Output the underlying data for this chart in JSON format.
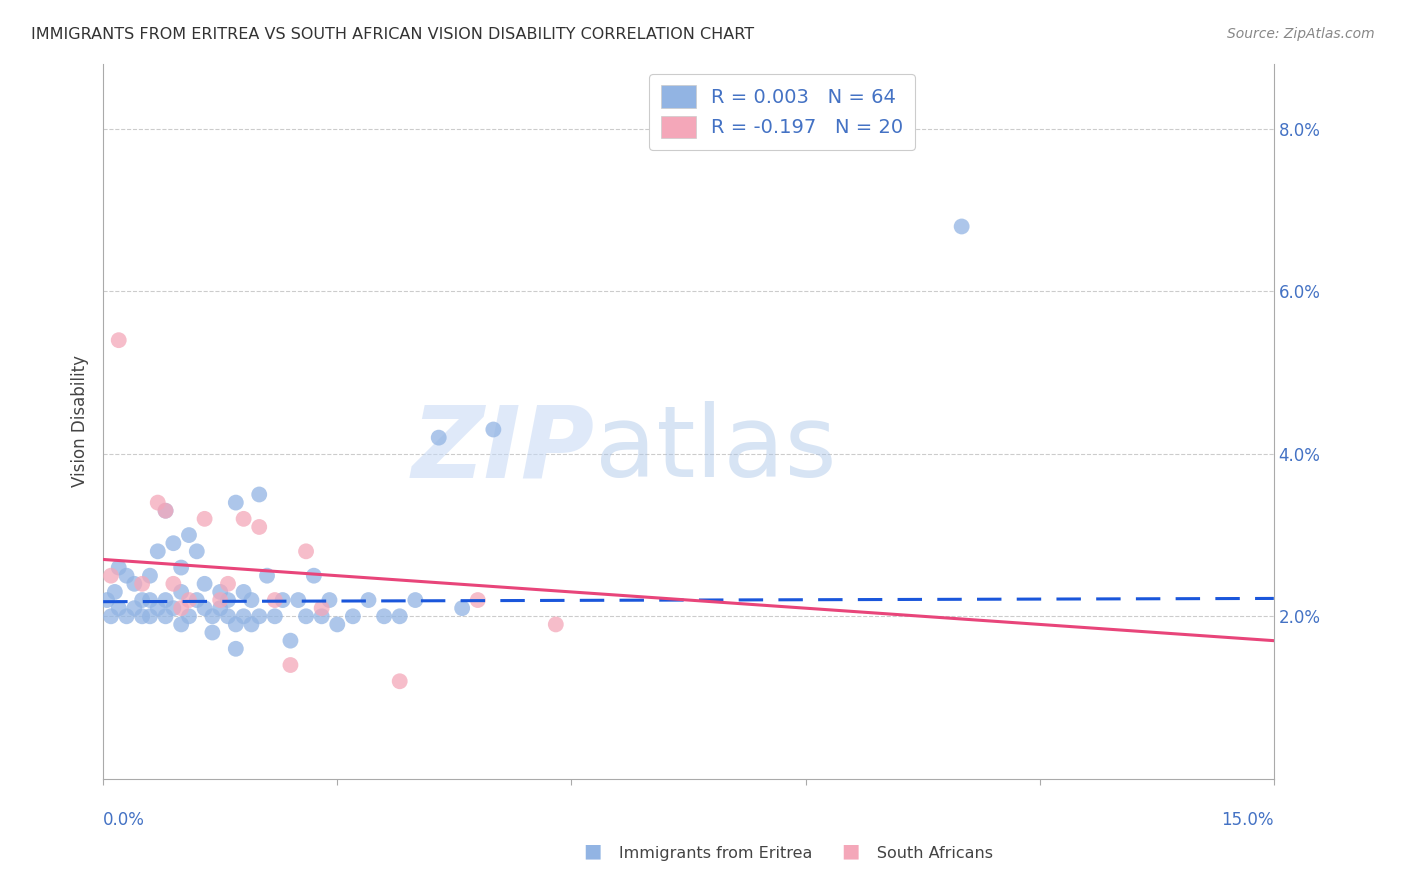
{
  "title": "IMMIGRANTS FROM ERITREA VS SOUTH AFRICAN VISION DISABILITY CORRELATION CHART",
  "source": "Source: ZipAtlas.com",
  "ylabel": "Vision Disability",
  "ylabel_right_ticks": [
    "8.0%",
    "6.0%",
    "4.0%",
    "2.0%"
  ],
  "ylabel_right_vals": [
    0.08,
    0.06,
    0.04,
    0.02
  ],
  "xlim": [
    0.0,
    0.15
  ],
  "ylim": [
    0.0,
    0.088
  ],
  "legend_r1": "R = 0.003",
  "legend_n1": "N = 64",
  "legend_r2": "R = -0.197",
  "legend_n2": "N = 20",
  "blue_color": "#92b4e3",
  "blue_line_color": "#1a56db",
  "pink_color": "#f4a7b9",
  "pink_line_color": "#e8457a",
  "watermark_zip": "ZIP",
  "watermark_atlas": "atlas",
  "label_color": "#4472c4",
  "grid_color": "#cccccc",
  "background_color": "#ffffff",
  "blue_scatter_x": [
    0.0005,
    0.001,
    0.0015,
    0.002,
    0.002,
    0.003,
    0.003,
    0.004,
    0.004,
    0.005,
    0.005,
    0.006,
    0.006,
    0.006,
    0.007,
    0.007,
    0.008,
    0.008,
    0.008,
    0.009,
    0.009,
    0.01,
    0.01,
    0.01,
    0.011,
    0.011,
    0.012,
    0.012,
    0.013,
    0.013,
    0.014,
    0.014,
    0.015,
    0.015,
    0.016,
    0.016,
    0.017,
    0.017,
    0.017,
    0.018,
    0.018,
    0.019,
    0.019,
    0.02,
    0.02,
    0.021,
    0.022,
    0.023,
    0.024,
    0.025,
    0.026,
    0.027,
    0.028,
    0.029,
    0.03,
    0.032,
    0.034,
    0.036,
    0.038,
    0.04,
    0.043,
    0.046,
    0.05,
    0.11
  ],
  "blue_scatter_y": [
    0.022,
    0.02,
    0.023,
    0.021,
    0.026,
    0.02,
    0.025,
    0.021,
    0.024,
    0.02,
    0.022,
    0.02,
    0.022,
    0.025,
    0.021,
    0.028,
    0.02,
    0.022,
    0.033,
    0.021,
    0.029,
    0.019,
    0.023,
    0.026,
    0.02,
    0.03,
    0.022,
    0.028,
    0.021,
    0.024,
    0.02,
    0.018,
    0.021,
    0.023,
    0.02,
    0.022,
    0.016,
    0.019,
    0.034,
    0.02,
    0.023,
    0.022,
    0.019,
    0.02,
    0.035,
    0.025,
    0.02,
    0.022,
    0.017,
    0.022,
    0.02,
    0.025,
    0.02,
    0.022,
    0.019,
    0.02,
    0.022,
    0.02,
    0.02,
    0.022,
    0.042,
    0.021,
    0.043,
    0.068
  ],
  "pink_scatter_x": [
    0.001,
    0.002,
    0.005,
    0.007,
    0.008,
    0.009,
    0.01,
    0.011,
    0.013,
    0.015,
    0.016,
    0.018,
    0.02,
    0.022,
    0.024,
    0.026,
    0.028,
    0.038,
    0.048,
    0.058
  ],
  "pink_scatter_y": [
    0.025,
    0.054,
    0.024,
    0.034,
    0.033,
    0.024,
    0.021,
    0.022,
    0.032,
    0.022,
    0.024,
    0.032,
    0.031,
    0.022,
    0.014,
    0.028,
    0.021,
    0.012,
    0.022,
    0.019
  ],
  "blue_line_x": [
    0.0,
    0.15
  ],
  "blue_line_y": [
    0.0218,
    0.0222
  ],
  "pink_line_x": [
    0.0,
    0.15
  ],
  "pink_line_y": [
    0.027,
    0.017
  ]
}
